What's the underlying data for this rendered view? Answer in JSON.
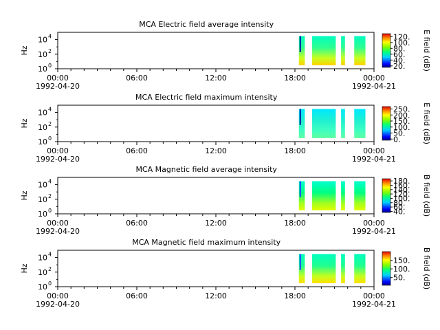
{
  "chart_data": [
    {
      "type": "heatmap",
      "title": "MCA  Electric field average intensity",
      "ylabel": "Hz",
      "yscale": "log",
      "ylim": [
        1,
        100000
      ],
      "y_ticks": [
        {
          "value": 1,
          "base": "10",
          "exp": "0"
        },
        {
          "value": 100,
          "base": "10",
          "exp": "2"
        },
        {
          "value": 10000,
          "base": "10",
          "exp": "4"
        }
      ],
      "x_ticks": [
        {
          "hour": 0,
          "label": "00:00",
          "date": "1992-04-20"
        },
        {
          "hour": 6,
          "label": "06:00"
        },
        {
          "hour": 12,
          "label": "12:00"
        },
        {
          "hour": 18,
          "label": "18:00"
        },
        {
          "hour": 24,
          "label": "00:00",
          "date": "1992-04-21"
        }
      ],
      "xlim_hours": [
        0,
        24
      ],
      "colorbar": {
        "label": "E field (dB)",
        "min": 15,
        "max": 130,
        "ticks": [
          20,
          40,
          60,
          80,
          100,
          120
        ],
        "tick_labels": [
          "20.",
          "40.",
          "60.",
          "80.",
          "100.",
          "120."
        ]
      },
      "data_blocks": [
        {
          "start_hour": 18.3,
          "end_hour": 18.75,
          "f_min": 3,
          "f_max": 30000
        },
        {
          "start_hour": 19.3,
          "end_hour": 21.1,
          "f_min": 3,
          "f_max": 30000
        },
        {
          "start_hour": 21.5,
          "end_hour": 21.8,
          "f_min": 3,
          "f_max": 30000
        },
        {
          "start_hour": 22.5,
          "end_hour": 23.35,
          "f_min": 3,
          "f_max": 30000
        }
      ]
    },
    {
      "type": "heatmap",
      "title": "MCA  Electric field maximum intensity",
      "ylabel": "Hz",
      "yscale": "log",
      "ylim": [
        1,
        100000
      ],
      "y_ticks": [
        {
          "value": 1,
          "base": "10",
          "exp": "0"
        },
        {
          "value": 100,
          "base": "10",
          "exp": "2"
        },
        {
          "value": 10000,
          "base": "10",
          "exp": "4"
        }
      ],
      "x_ticks": [
        {
          "hour": 0,
          "label": "00:00",
          "date": "1992-04-20"
        },
        {
          "hour": 6,
          "label": "06:00"
        },
        {
          "hour": 12,
          "label": "12:00"
        },
        {
          "hour": 18,
          "label": "18:00"
        },
        {
          "hour": 24,
          "label": "00:00",
          "date": "1992-04-21"
        }
      ],
      "xlim_hours": [
        0,
        24
      ],
      "colorbar": {
        "label": "E field (dB)",
        "min": -10,
        "max": 270,
        "ticks": [
          0,
          50,
          100,
          150,
          200,
          250
        ],
        "tick_labels": [
          "0.",
          "50.",
          "100.",
          "150.",
          "200.",
          "250."
        ]
      },
      "data_blocks": [
        {
          "start_hour": 18.3,
          "end_hour": 18.75,
          "f_min": 3,
          "f_max": 30000
        },
        {
          "start_hour": 19.3,
          "end_hour": 21.1,
          "f_min": 3,
          "f_max": 30000
        },
        {
          "start_hour": 21.5,
          "end_hour": 21.8,
          "f_min": 3,
          "f_max": 30000
        },
        {
          "start_hour": 22.5,
          "end_hour": 23.35,
          "f_min": 3,
          "f_max": 30000
        }
      ]
    },
    {
      "type": "heatmap",
      "title": "MCA  Magnetic field average intensity",
      "ylabel": "Hz",
      "yscale": "log",
      "ylim": [
        1,
        100000
      ],
      "y_ticks": [
        {
          "value": 1,
          "base": "10",
          "exp": "0"
        },
        {
          "value": 100,
          "base": "10",
          "exp": "2"
        },
        {
          "value": 10000,
          "base": "10",
          "exp": "4"
        }
      ],
      "x_ticks": [
        {
          "hour": 0,
          "label": "00:00",
          "date": "1992-04-20"
        },
        {
          "hour": 6,
          "label": "06:00"
        },
        {
          "hour": 12,
          "label": "12:00"
        },
        {
          "hour": 18,
          "label": "18:00"
        },
        {
          "hour": 24,
          "label": "00:00",
          "date": "1992-04-21"
        }
      ],
      "xlim_hours": [
        0,
        24
      ],
      "colorbar": {
        "label": "B field (dB)",
        "min": 35,
        "max": 190,
        "ticks": [
          40,
          60,
          80,
          100,
          120,
          140,
          160,
          180
        ],
        "tick_labels": [
          "40.",
          "60.",
          "80.",
          "100.",
          "120.",
          "140.",
          "160.",
          "180."
        ]
      },
      "data_blocks": [
        {
          "start_hour": 18.3,
          "end_hour": 18.75,
          "f_min": 3,
          "f_max": 30000
        },
        {
          "start_hour": 19.3,
          "end_hour": 21.1,
          "f_min": 3,
          "f_max": 30000
        },
        {
          "start_hour": 21.5,
          "end_hour": 21.8,
          "f_min": 3,
          "f_max": 30000
        },
        {
          "start_hour": 22.5,
          "end_hour": 23.35,
          "f_min": 3,
          "f_max": 30000
        }
      ]
    },
    {
      "type": "heatmap",
      "title": "MCA  Magnetic field maximum intensity",
      "ylabel": "Hz",
      "yscale": "log",
      "ylim": [
        1,
        100000
      ],
      "y_ticks": [
        {
          "value": 1,
          "base": "10",
          "exp": "0"
        },
        {
          "value": 100,
          "base": "10",
          "exp": "2"
        },
        {
          "value": 10000,
          "base": "10",
          "exp": "4"
        }
      ],
      "x_ticks": [
        {
          "hour": 0,
          "label": "00:00",
          "date": "1992-04-20"
        },
        {
          "hour": 6,
          "label": "06:00"
        },
        {
          "hour": 12,
          "label": "12:00"
        },
        {
          "hour": 18,
          "label": "18:00"
        },
        {
          "hour": 24,
          "label": "00:00",
          "date": "1992-04-21"
        }
      ],
      "xlim_hours": [
        0,
        24
      ],
      "colorbar": {
        "label": "B field (dB)",
        "min": 5,
        "max": 200,
        "ticks": [
          50,
          100,
          150
        ],
        "tick_labels": [
          "50.",
          "100.",
          "150."
        ]
      },
      "data_blocks": [
        {
          "start_hour": 18.3,
          "end_hour": 18.75,
          "f_min": 3,
          "f_max": 30000
        },
        {
          "start_hour": 19.3,
          "end_hour": 21.1,
          "f_min": 3,
          "f_max": 30000
        },
        {
          "start_hour": 21.5,
          "end_hour": 21.8,
          "f_min": 3,
          "f_max": 30000
        },
        {
          "start_hour": 22.5,
          "end_hour": 23.35,
          "f_min": 3,
          "f_max": 30000
        }
      ]
    }
  ]
}
